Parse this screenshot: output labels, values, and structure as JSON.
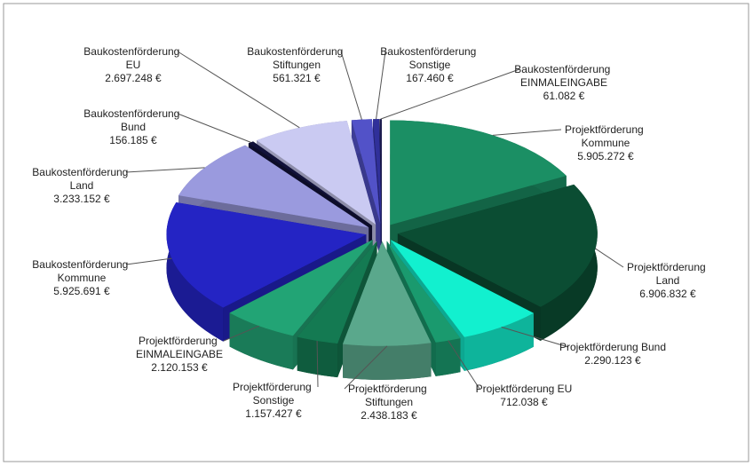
{
  "chart_data": {
    "type": "pie",
    "three_d": true,
    "exploded": true,
    "categories": [
      "Projektförderung Kommune",
      "Projektförderung Land",
      "Projektförderung Bund",
      "Projektförderung EU",
      "Projektförderung Stiftungen",
      "Projektförderung Sonstige",
      "Projektförderung EINMALEINGABE",
      "Baukostenförderung Kommune",
      "Baukostenförderung Land",
      "Baukostenförderung Bund",
      "Baukostenförderung EU",
      "Baukostenförderung Stiftungen",
      "Baukostenförderung Sonstige",
      "Baukostenförderung EINMALEINGABE"
    ],
    "values": [
      5905272,
      6906832,
      2290123,
      712038,
      2438183,
      1157427,
      2120153,
      5925691,
      3233152,
      156185,
      2697248,
      561321,
      167460,
      61082
    ],
    "value_labels": [
      "5.905.272 €",
      "6.906.832 €",
      "2.290.123 €",
      "712.038 €",
      "2.438.183 €",
      "1.157.427 €",
      "2.120.153 €",
      "5.925.691 €",
      "3.233.152 €",
      "156.185 €",
      "2.697.248 €",
      "561.321 €",
      "167.460 €",
      "61.082 €"
    ],
    "colors": [
      "#1b8f64",
      "#0b4d33",
      "#12f0cf",
      "#1a9a6e",
      "#5aa88c",
      "#147a52",
      "#22a475",
      "#2424c4",
      "#9a9ade",
      "#12123a",
      "#cacaf2",
      "#5252c8",
      "#30309a",
      "#1c1c4e"
    ]
  }
}
